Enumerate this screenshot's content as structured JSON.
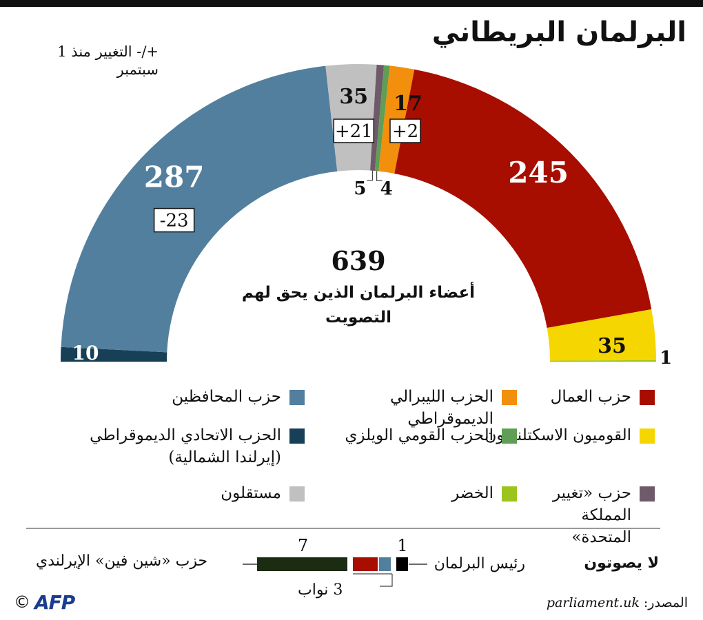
{
  "title": "البرلمان البريطاني",
  "change_note": "+/- التغيير منذ 1 سبتمبر",
  "center": {
    "total": "639",
    "text": "أعضاء البرلمان الذين يحق لهم التصويت"
  },
  "chart_data": {
    "type": "hemicycle",
    "total": 639,
    "order": "left-to-right",
    "seats": [
      {
        "party": "الحزب الاتحادي الديموقراطي (إيرلندا الشمالية)",
        "value": 10,
        "color": "#173f56",
        "label": "10",
        "change": ""
      },
      {
        "party": "حزب المحافظين",
        "value": 287,
        "color": "#527f9e",
        "label": "287",
        "change": "-23"
      },
      {
        "party": "مستقلون",
        "value": 35,
        "color": "#c0c0c0",
        "label": "35",
        "change": "+21"
      },
      {
        "party": "حزب «تغيير المملكة المتحدة»",
        "value": 5,
        "color": "#6e5a68",
        "label": "5",
        "change": ""
      },
      {
        "party": "الحزب القومي الويلزي",
        "value": 4,
        "color": "#5f9e54",
        "label": "4",
        "change": ""
      },
      {
        "party": "الحزب الليبرالي الديموقراطي",
        "value": 17,
        "color": "#f28f0c",
        "label": "17",
        "change": "+2"
      },
      {
        "party": "حزب العمال",
        "value": 245,
        "color": "#a80e00",
        "label": "245",
        "change": ""
      },
      {
        "party": "القوميون الاسكتلنديون",
        "value": 35,
        "color": "#f6d600",
        "label": "35",
        "change": ""
      },
      {
        "party": "الخضر",
        "value": 1,
        "color": "#9ac51f",
        "label": "1",
        "change": ""
      }
    ],
    "non_voting": {
      "title": "لا يصوتون",
      "speaker_label": "رئيس البرلمان",
      "sinn_fein_label": "حزب «شين فين» الإيرلندي",
      "deputies_label": "3 نواب",
      "speaker": {
        "value": 1,
        "color": "#000000",
        "label": "1"
      },
      "deputies": [
        {
          "value": 1,
          "color": "#527f9e"
        },
        {
          "value": 2,
          "color": "#a80e00"
        }
      ],
      "sinn_fein": {
        "value": 7,
        "color": "#1c2c12",
        "label": "7"
      }
    }
  },
  "legend": [
    {
      "label": "حزب العمال",
      "color": "#a80e00"
    },
    {
      "label": "الحزب الليبرالي الديموقراطي",
      "color": "#f28f0c"
    },
    {
      "label": "حزب المحافظين",
      "color": "#527f9e"
    },
    {
      "label": "القوميون الاسكتلنديون",
      "color": "#f6d600"
    },
    {
      "label": "الحزب القومي الويلزي",
      "color": "#5f9e54"
    },
    {
      "label": "الحزب الاتحادي الديموقراطي (إيرلندا الشمالية)",
      "color": "#173f56"
    },
    {
      "label": "حزب «تغيير المملكة المتحدة»",
      "color": "#6e5a68"
    },
    {
      "label": "الخضر",
      "color": "#9ac51f"
    },
    {
      "label": "مستقلون",
      "color": "#c0c0c0"
    }
  ],
  "source": {
    "prefix": "المصدر:",
    "site": "parliament.uk"
  },
  "credit": {
    "copyright": "©",
    "logo": "AFP"
  }
}
